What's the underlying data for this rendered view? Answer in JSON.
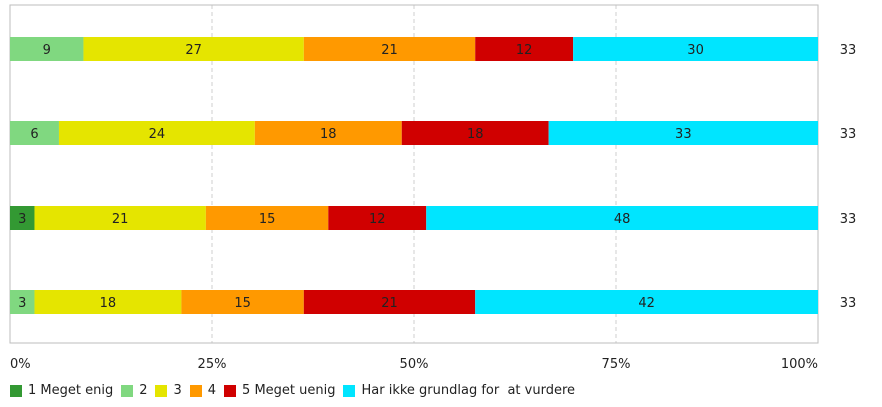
{
  "chart_data": {
    "type": "bar",
    "orientation": "horizontal",
    "stacked": "percent",
    "categories": [
      "",
      "",
      "",
      ""
    ],
    "series": [
      {
        "name": "1 Meget enig",
        "color": "#339933",
        "values": [
          0,
          0,
          3,
          0
        ]
      },
      {
        "name": "2",
        "color": "#80D880",
        "values": [
          9,
          6,
          0,
          3
        ]
      },
      {
        "name": "3",
        "color": "#E5E500",
        "values": [
          27,
          24,
          21,
          18
        ]
      },
      {
        "name": "4",
        "color": "#FF9900",
        "values": [
          21,
          18,
          15,
          15
        ]
      },
      {
        "name": "5 Meget uenig",
        "color": "#D00000",
        "values": [
          12,
          18,
          12,
          21
        ]
      },
      {
        "name": "Har ikke grundlag for  at vurdere",
        "color": "#00E5FF",
        "values": [
          30,
          33,
          48,
          42
        ]
      }
    ],
    "totals": [
      "33",
      "33",
      "33",
      "33"
    ],
    "x_ticks": [
      "0%",
      "25%",
      "50%",
      "75%",
      "100%"
    ],
    "xlim": [
      0,
      100
    ],
    "grid": "vertical-dashed",
    "legend_position": "bottom"
  }
}
